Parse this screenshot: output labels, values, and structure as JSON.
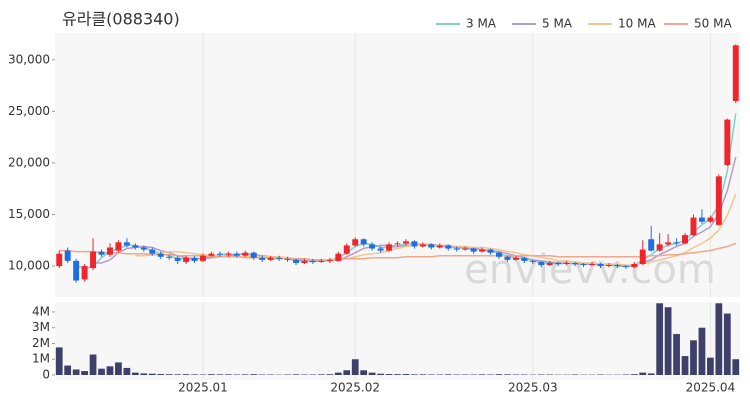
{
  "chart_data": {
    "type": "candlestick",
    "title": "유라클(088340)",
    "watermark": "envievv.com",
    "up_color": "#f0242b",
    "down_color": "#1e6fe0",
    "xlim": [
      0,
      81
    ],
    "xticks": [
      {
        "value": 17,
        "label": "2025.01"
      },
      {
        "value": 35,
        "label": "2025.02"
      },
      {
        "value": 56,
        "label": "2025.03"
      },
      {
        "value": 77,
        "label": "2025.04"
      }
    ],
    "ylim": [
      7000,
      32600
    ],
    "yticks": [
      {
        "value": 10000,
        "label": "10,000"
      },
      {
        "value": 15000,
        "label": "15,000"
      },
      {
        "value": 20000,
        "label": "20,000"
      },
      {
        "value": 25000,
        "label": "25,000"
      },
      {
        "value": 30000,
        "label": "30,000"
      }
    ],
    "grid": true,
    "legend": "top-right",
    "ohlc": [
      [
        10000,
        11500,
        9800,
        11200
      ],
      [
        11500,
        11800,
        10300,
        10500
      ],
      [
        10500,
        10700,
        8400,
        8600
      ],
      [
        8700,
        10200,
        8500,
        10000
      ],
      [
        9800,
        12700,
        9600,
        11400
      ],
      [
        11400,
        11600,
        10900,
        11100
      ],
      [
        11100,
        12200,
        10900,
        11800
      ],
      [
        11500,
        12500,
        11300,
        12300
      ],
      [
        12300,
        12700,
        11800,
        12000
      ],
      [
        12000,
        12200,
        11600,
        11800
      ],
      [
        11800,
        12000,
        11400,
        11600
      ],
      [
        11600,
        11800,
        11000,
        11200
      ],
      [
        11200,
        11400,
        10700,
        10900
      ],
      [
        10900,
        11100,
        10600,
        10800
      ],
      [
        10800,
        11000,
        10200,
        10500
      ],
      [
        10400,
        11000,
        10200,
        10800
      ],
      [
        10800,
        11000,
        10300,
        10500
      ],
      [
        10500,
        11200,
        10400,
        11000
      ],
      [
        11000,
        11400,
        10900,
        11200
      ],
      [
        11200,
        11400,
        10900,
        11100
      ],
      [
        11100,
        11400,
        10900,
        11200
      ],
      [
        11200,
        11400,
        10800,
        11000
      ],
      [
        11000,
        11500,
        10900,
        11300
      ],
      [
        11300,
        11400,
        10600,
        10800
      ],
      [
        10800,
        11000,
        10400,
        10600
      ],
      [
        10600,
        11000,
        10500,
        10800
      ],
      [
        10800,
        11000,
        10500,
        10700
      ],
      [
        10700,
        10900,
        10400,
        10600
      ],
      [
        10600,
        10700,
        10100,
        10300
      ],
      [
        10300,
        10700,
        10200,
        10500
      ],
      [
        10500,
        10700,
        10200,
        10400
      ],
      [
        10400,
        10700,
        10300,
        10500
      ],
      [
        10500,
        10800,
        10300,
        10600
      ],
      [
        10500,
        11400,
        10400,
        11200
      ],
      [
        11200,
        12200,
        11100,
        12000
      ],
      [
        12000,
        12800,
        11900,
        12600
      ],
      [
        12600,
        12700,
        11900,
        12100
      ],
      [
        12100,
        12300,
        11500,
        11700
      ],
      [
        11700,
        11900,
        11300,
        11500
      ],
      [
        11500,
        12300,
        11400,
        12100
      ],
      [
        12100,
        12400,
        11900,
        12200
      ],
      [
        12200,
        12600,
        12000,
        12400
      ],
      [
        12400,
        12500,
        11700,
        11900
      ],
      [
        11900,
        12300,
        11800,
        12100
      ],
      [
        12100,
        12200,
        11600,
        11800
      ],
      [
        11800,
        12200,
        11700,
        12000
      ],
      [
        12000,
        12100,
        11500,
        11700
      ],
      [
        11700,
        11900,
        11400,
        11600
      ],
      [
        11600,
        11900,
        11500,
        11700
      ],
      [
        11700,
        11800,
        11200,
        11400
      ],
      [
        11400,
        11800,
        11300,
        11600
      ],
      [
        11600,
        11700,
        11100,
        11300
      ],
      [
        11300,
        11400,
        10700,
        10900
      ],
      [
        10900,
        11000,
        10400,
        10600
      ],
      [
        10600,
        11000,
        10500,
        10800
      ],
      [
        10800,
        10900,
        10300,
        10500
      ],
      [
        10500,
        10600,
        10200,
        10400
      ],
      [
        10400,
        10500,
        9900,
        10100
      ],
      [
        10100,
        10500,
        10000,
        10300
      ],
      [
        10300,
        10400,
        10000,
        10200
      ],
      [
        10200,
        10500,
        10100,
        10300
      ],
      [
        10300,
        10400,
        10000,
        10200
      ],
      [
        10200,
        10300,
        9900,
        10100
      ],
      [
        10100,
        10400,
        10000,
        10200
      ],
      [
        10200,
        10300,
        9800,
        10000
      ],
      [
        10000,
        10300,
        9900,
        10100
      ],
      [
        10100,
        10200,
        9800,
        10000
      ],
      [
        10000,
        10100,
        9700,
        9900
      ],
      [
        9900,
        10400,
        9800,
        10200
      ],
      [
        10200,
        12500,
        10100,
        11600
      ],
      [
        12600,
        13900,
        11400,
        11500
      ],
      [
        11500,
        13200,
        11400,
        12100
      ],
      [
        12100,
        13100,
        11900,
        12300
      ],
      [
        12300,
        12700,
        12000,
        12200
      ],
      [
        12200,
        13200,
        12100,
        13000
      ],
      [
        13000,
        15000,
        12900,
        14700
      ],
      [
        14700,
        15500,
        14100,
        14300
      ],
      [
        14300,
        14900,
        14200,
        14700
      ],
      [
        14000,
        18900,
        13900,
        18700
      ],
      [
        19800,
        24300,
        19700,
        24200
      ],
      [
        26000,
        31500,
        25800,
        31400
      ]
    ],
    "ma": [
      {
        "name": "3 MA",
        "color": "#7fd0cf",
        "values": [
          null,
          null,
          10100,
          9700,
          10000,
          10800,
          11400,
          11700,
          12000,
          12000,
          11800,
          11500,
          11200,
          11000,
          10700,
          10700,
          10600,
          10800,
          10900,
          11100,
          11200,
          11100,
          11200,
          11000,
          10900,
          10700,
          10700,
          10700,
          10500,
          10500,
          10400,
          10500,
          10500,
          10800,
          11300,
          11900,
          12200,
          12100,
          11800,
          11800,
          11900,
          12200,
          12200,
          12100,
          11900,
          12000,
          11800,
          11800,
          11700,
          11600,
          11600,
          11400,
          11300,
          10900,
          10800,
          10600,
          10600,
          10300,
          10300,
          10200,
          10300,
          10200,
          10200,
          10200,
          10100,
          10100,
          10000,
          10000,
          10000,
          10600,
          11100,
          11700,
          12000,
          12200,
          12500,
          13300,
          14000,
          14600,
          15900,
          19200,
          24800
        ]
      },
      {
        "name": "5 MA",
        "color": "#b69bcb",
        "values": [
          null,
          null,
          null,
          null,
          10300,
          10300,
          10600,
          11300,
          11700,
          11800,
          11900,
          11800,
          11500,
          11300,
          11000,
          10800,
          10700,
          10700,
          10800,
          10900,
          11000,
          11100,
          11200,
          11100,
          11000,
          10900,
          10800,
          10700,
          10600,
          10600,
          10500,
          10500,
          10500,
          10600,
          10900,
          11300,
          11700,
          11900,
          12000,
          12000,
          11900,
          12000,
          12000,
          12100,
          12100,
          12000,
          11900,
          11800,
          11800,
          11700,
          11600,
          11500,
          11400,
          11200,
          11000,
          10800,
          10600,
          10500,
          10400,
          10300,
          10300,
          10200,
          10200,
          10200,
          10200,
          10100,
          10100,
          10000,
          10000,
          10400,
          10600,
          11100,
          11500,
          11900,
          12200,
          12900,
          13300,
          13800,
          15100,
          17300,
          20600
        ]
      },
      {
        "name": "10 MA",
        "color": "#f6c58c",
        "values": [
          null,
          null,
          null,
          null,
          null,
          null,
          null,
          null,
          null,
          11000,
          11000,
          11100,
          11300,
          11400,
          11400,
          11300,
          11200,
          11100,
          11000,
          10900,
          10900,
          10900,
          10900,
          10900,
          10900,
          10900,
          10900,
          10800,
          10700,
          10700,
          10600,
          10600,
          10500,
          10600,
          10700,
          10900,
          11100,
          11200,
          11300,
          11500,
          11700,
          11900,
          12000,
          12100,
          12000,
          12000,
          12000,
          11900,
          11900,
          11800,
          11800,
          11700,
          11600,
          11400,
          11300,
          11100,
          11000,
          10800,
          10700,
          10500,
          10500,
          10400,
          10300,
          10300,
          10200,
          10200,
          10200,
          10100,
          10100,
          10300,
          10400,
          10600,
          10800,
          11000,
          11300,
          11800,
          12200,
          12700,
          13500,
          14900,
          17000
        ]
      },
      {
        "name": "50 MA",
        "color": "#f0a78c",
        "values": [
          11500,
          11500,
          11400,
          11400,
          11400,
          11300,
          11300,
          11300,
          11200,
          11200,
          11200,
          11100,
          11100,
          11100,
          11000,
          11000,
          11000,
          11000,
          10900,
          10900,
          10900,
          10900,
          10800,
          10800,
          10800,
          10800,
          10700,
          10700,
          10700,
          10700,
          10600,
          10600,
          10600,
          10700,
          10700,
          10700,
          10700,
          10800,
          10800,
          10800,
          10800,
          10900,
          10900,
          10900,
          10900,
          11000,
          11000,
          11000,
          11000,
          11000,
          11000,
          11000,
          11000,
          11000,
          11000,
          11000,
          11000,
          11000,
          11000,
          10900,
          10900,
          10900,
          10900,
          10900,
          10900,
          10900,
          10900,
          10900,
          10900,
          10900,
          11000,
          11000,
          11100,
          11100,
          11200,
          11300,
          11400,
          11500,
          11700,
          11900,
          12200
        ]
      }
    ],
    "volume": {
      "color": "#3e4069",
      "ylim": [
        0,
        4600000
      ],
      "yticks": [
        0,
        {
          "value": 1000000,
          "label": "1M"
        },
        {
          "value": 2000000,
          "label": "2M"
        },
        {
          "value": 3000000,
          "label": "3M"
        },
        {
          "value": 4000000,
          "label": "4M"
        }
      ],
      "values": [
        1750000,
        600000,
        350000,
        250000,
        1300000,
        400000,
        550000,
        800000,
        450000,
        150000,
        100000,
        80000,
        60000,
        50000,
        40000,
        50000,
        40000,
        30000,
        50000,
        40000,
        40000,
        30000,
        40000,
        50000,
        30000,
        30000,
        20000,
        30000,
        40000,
        30000,
        30000,
        40000,
        50000,
        150000,
        300000,
        1000000,
        300000,
        150000,
        80000,
        60000,
        50000,
        60000,
        40000,
        40000,
        30000,
        30000,
        40000,
        30000,
        30000,
        30000,
        40000,
        30000,
        50000,
        40000,
        30000,
        30000,
        20000,
        30000,
        30000,
        20000,
        20000,
        30000,
        20000,
        20000,
        30000,
        20000,
        20000,
        30000,
        50000,
        150000,
        100000,
        4550000,
        4300000,
        2600000,
        1200000,
        2200000,
        3000000,
        1100000,
        4550000,
        3900000,
        1000000
      ]
    }
  }
}
